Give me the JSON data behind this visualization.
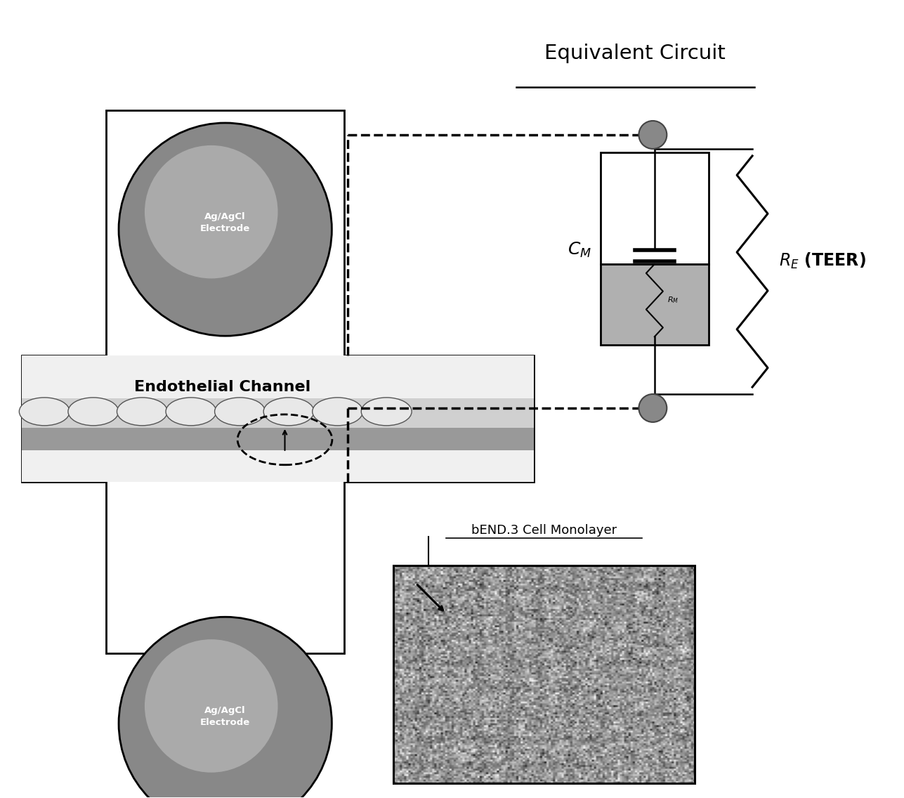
{
  "title": "Equivalent Circuit",
  "label_endothelial": "Endothelial Channel",
  "label_agagcl": "Ag/AgCl\nElectrode",
  "label_cm": "$C_M$",
  "label_re_teer": "$R_E$ (TEER)",
  "label_rm": "$R_M$",
  "label_monolayer": "bEND.3 Cell Monolayer",
  "bg_color": "#ffffff",
  "electrode_fc": "#888888",
  "electrode_inner_fc": "#aaaaaa",
  "channel_fc": "#f0f0f0",
  "membrane_fc": "#999999",
  "cell_fc": "#e8e8e8",
  "circuit_mem_fc": "#b0b0b0",
  "node_fc": "#888888",
  "cross_fc": "#ffffff"
}
